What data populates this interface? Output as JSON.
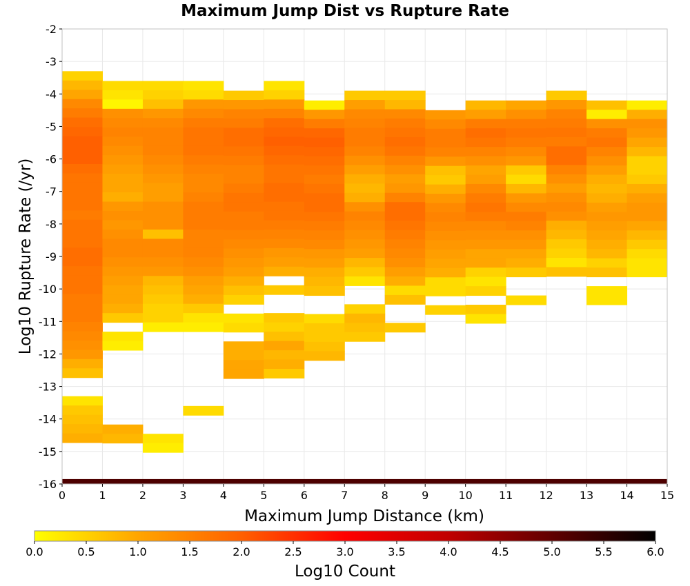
{
  "chart_data": {
    "type": "heatmap",
    "title": "Maximum Jump Dist vs Rupture Rate",
    "xlabel": "Maximum Jump Distance (km)",
    "ylabel": "Log10 Rupture Rate (/yr)",
    "xlim": [
      0,
      15
    ],
    "ylim": [
      -16,
      -2
    ],
    "x_ticks": [
      "0",
      "1",
      "2",
      "3",
      "4",
      "5",
      "6",
      "7",
      "8",
      "9",
      "10",
      "11",
      "12",
      "13",
      "14",
      "15"
    ],
    "y_ticks": [
      "-2",
      "-3",
      "-4",
      "-5",
      "-6",
      "-7",
      "-8",
      "-9",
      "-10",
      "-11",
      "-12",
      "-13",
      "-14",
      "-15",
      "-16"
    ],
    "x_bin_width": 1,
    "y_bin_height": 0.2857,
    "grid": true,
    "colorbar": {
      "label": "Log10 Count",
      "min": 0,
      "max": 6,
      "ticks": [
        "0.0",
        "0.5",
        "1.0",
        "1.5",
        "2.0",
        "2.5",
        "3.0",
        "3.5",
        "4.0",
        "4.5",
        "5.0",
        "5.5",
        "6.0"
      ],
      "colors": [
        "#ffff00",
        "#ffa500",
        "#ff6000",
        "#ff0000",
        "#c00000",
        "#600000",
        "#000000"
      ]
    },
    "note_bottom_row": "bottom row at -16 has high counts across all distances",
    "columns": [
      {
        "x": 0.5,
        "top": -3.3,
        "values": [
          0.5,
          0.8,
          1.0,
          1.4,
          1.6,
          1.8,
          1.9,
          2.0,
          2.0,
          2.0,
          1.8,
          1.7,
          1.7,
          1.7,
          1.7,
          1.6,
          1.7,
          1.7,
          1.7,
          1.8,
          1.8,
          1.7,
          1.7,
          1.7,
          1.6,
          1.6,
          1.6,
          1.5,
          1.4,
          1.3,
          1.2,
          0.9,
          0.7,
          null,
          null,
          0.3,
          0.6,
          0.7,
          0.8,
          0.9
        ]
      },
      {
        "x": 1.5,
        "top": -3.6,
        "values": [
          0.4,
          0.3,
          0.1,
          1.3,
          1.4,
          1.5,
          1.4,
          1.3,
          1.2,
          1.1,
          1.0,
          1.0,
          0.9,
          1.2,
          1.3,
          1.2,
          1.3,
          1.4,
          1.4,
          1.3,
          1.2,
          1.1,
          1.0,
          1.0,
          0.9,
          0.6,
          null,
          0.3,
          0.2,
          null,
          null,
          null,
          null,
          null,
          null,
          null,
          null,
          0.9,
          0.8,
          null
        ]
      },
      {
        "x": 2.5,
        "top": -3.6,
        "values": [
          0.4,
          0.5,
          0.7,
          1.2,
          1.4,
          1.5,
          1.5,
          1.5,
          1.4,
          1.3,
          1.2,
          1.1,
          1.1,
          1.3,
          1.3,
          1.3,
          0.7,
          1.4,
          1.4,
          1.3,
          1.2,
          0.8,
          0.7,
          0.6,
          0.5,
          0.5,
          0.2,
          null,
          null,
          null,
          null,
          null,
          null,
          null,
          null,
          null,
          null,
          null,
          0.3,
          0.2
        ]
      },
      {
        "x": 3.5,
        "top": -3.6,
        "values": [
          0.3,
          0.4,
          1.2,
          1.4,
          1.6,
          1.7,
          1.7,
          1.7,
          1.6,
          1.5,
          1.4,
          1.4,
          1.5,
          1.6,
          1.6,
          1.6,
          1.5,
          1.5,
          1.5,
          1.4,
          1.3,
          1.1,
          1.0,
          0.9,
          0.6,
          0.3,
          0.2,
          null,
          null,
          null,
          null,
          null,
          null,
          null,
          null,
          0.4,
          null,
          null,
          null,
          null
        ]
      },
      {
        "x": 4.5,
        "top": -3.9,
        "values": [
          0.6,
          1.2,
          1.5,
          1.6,
          1.8,
          1.8,
          1.7,
          1.6,
          1.5,
          1.5,
          1.6,
          1.7,
          1.7,
          1.6,
          1.6,
          1.5,
          1.4,
          1.3,
          1.2,
          1.1,
          0.9,
          0.7,
          0.5,
          null,
          0.3,
          0.4,
          null,
          0.9,
          0.9,
          1.0,
          1.0,
          null,
          null,
          null,
          null,
          null,
          null,
          null,
          null,
          null
        ]
      },
      {
        "x": 5.5,
        "top": -3.6,
        "values": [
          0.3,
          0.5,
          1.2,
          1.5,
          1.8,
          1.9,
          2.0,
          1.9,
          1.8,
          1.7,
          1.7,
          1.8,
          1.8,
          1.7,
          1.7,
          1.6,
          1.5,
          1.4,
          1.2,
          1.1,
          0.9,
          null,
          0.6,
          null,
          null,
          0.6,
          0.5,
          0.7,
          1.0,
          0.8,
          0.9,
          0.6,
          null,
          null,
          null,
          null,
          null,
          null,
          null,
          null
        ]
      },
      {
        "x": 6.5,
        "top": -4.2,
        "values": [
          0.2,
          1.2,
          1.6,
          1.9,
          2.0,
          1.9,
          1.8,
          1.7,
          1.6,
          1.7,
          1.8,
          1.8,
          1.7,
          1.6,
          1.5,
          1.4,
          1.2,
          1.1,
          0.9,
          0.8,
          0.7,
          null,
          null,
          0.4,
          0.6,
          0.6,
          0.7,
          0.8,
          null,
          null,
          null,
          null,
          null,
          null,
          null,
          null,
          null,
          null,
          null,
          null
        ]
      },
      {
        "x": 7.5,
        "top": -3.9,
        "values": [
          0.6,
          1.1,
          1.4,
          1.5,
          1.6,
          1.6,
          1.5,
          1.3,
          1.1,
          0.9,
          0.8,
          0.9,
          1.3,
          1.5,
          1.4,
          1.3,
          1.2,
          1.1,
          0.8,
          0.6,
          0.3,
          null,
          null,
          0.5,
          0.8,
          0.7,
          0.6,
          null,
          null,
          null,
          null,
          null,
          null,
          null,
          null,
          null,
          null,
          null,
          null,
          null
        ]
      },
      {
        "x": 8.5,
        "top": -3.9,
        "values": [
          0.6,
          0.8,
          1.4,
          1.6,
          1.7,
          1.8,
          1.7,
          1.5,
          1.3,
          1.1,
          1.2,
          1.5,
          1.8,
          1.8,
          1.7,
          1.6,
          1.5,
          1.4,
          1.3,
          1.1,
          0.9,
          0.4,
          0.7,
          null,
          null,
          0.6,
          null,
          null,
          null,
          null,
          null,
          null,
          null,
          null,
          null,
          null,
          null,
          null,
          null,
          null
        ]
      },
      {
        "x": 9.5,
        "top": -4.5,
        "values": [
          1.2,
          1.4,
          1.6,
          1.6,
          1.5,
          1.2,
          0.7,
          0.6,
          0.9,
          1.2,
          1.4,
          1.5,
          1.4,
          1.3,
          1.2,
          1.1,
          1.0,
          0.9,
          0.4,
          0.4,
          null,
          0.5,
          null,
          null,
          null,
          null,
          null,
          null,
          null,
          null,
          null,
          null,
          null,
          null,
          null,
          null,
          null,
          null,
          null,
          null
        ]
      },
      {
        "x": 10.5,
        "top": -4.2,
        "values": [
          0.8,
          1.1,
          1.6,
          1.8,
          1.7,
          1.5,
          1.3,
          1.0,
          1.1,
          1.4,
          1.6,
          1.7,
          1.6,
          1.4,
          1.3,
          1.2,
          1.0,
          1.0,
          0.5,
          0.3,
          0.5,
          null,
          0.6,
          0.3,
          null,
          null,
          null,
          null,
          null,
          null,
          null,
          null,
          null,
          null,
          null,
          null,
          null,
          null,
          null,
          null
        ]
      },
      {
        "x": 11.5,
        "top": -4.2,
        "values": [
          1.0,
          1.3,
          1.6,
          1.7,
          1.6,
          1.4,
          1.2,
          0.6,
          0.4,
          0.8,
          1.2,
          1.4,
          1.6,
          1.5,
          1.3,
          1.2,
          1.0,
          0.9,
          0.6,
          null,
          null,
          0.4,
          null,
          null,
          null,
          null,
          null,
          null,
          null,
          null,
          null,
          null,
          null,
          null,
          null,
          null,
          null,
          null,
          null,
          null
        ]
      },
      {
        "x": 12.5,
        "top": -3.9,
        "values": [
          0.6,
          1.2,
          1.5,
          1.6,
          1.7,
          1.6,
          1.8,
          1.8,
          1.5,
          1.3,
          1.1,
          1.3,
          1.4,
          1.3,
          0.9,
          0.8,
          0.6,
          0.5,
          0.3,
          0.7,
          null,
          null,
          null,
          null,
          null,
          null,
          null,
          null,
          null,
          null,
          null,
          null,
          null,
          null,
          null,
          null,
          null,
          null,
          null,
          null
        ]
      },
      {
        "x": 13.5,
        "top": -4.2,
        "values": [
          0.7,
          0.2,
          1.3,
          1.6,
          1.7,
          1.5,
          1.3,
          1.1,
          0.9,
          0.8,
          0.9,
          1.1,
          1.2,
          1.1,
          1.0,
          0.9,
          0.8,
          0.5,
          0.7,
          null,
          0.3,
          0.3,
          null,
          null,
          null,
          null,
          null,
          null,
          null,
          null,
          null,
          null,
          null,
          null,
          null,
          null,
          null,
          null,
          null,
          null
        ]
      },
      {
        "x": 14.5,
        "top": -4.2,
        "values": [
          0.2,
          0.9,
          1.3,
          1.2,
          1.0,
          0.8,
          0.5,
          0.5,
          0.6,
          0.9,
          1.1,
          1.2,
          1.2,
          1.0,
          0.8,
          0.6,
          0.4,
          0.3,
          0.3,
          null,
          null,
          null,
          null,
          null,
          null,
          null,
          null,
          null,
          null,
          null,
          null,
          null,
          null,
          null,
          null,
          null,
          null,
          null,
          null,
          null
        ]
      }
    ],
    "bottom_row": {
      "y": -16,
      "value": 5.2
    }
  }
}
